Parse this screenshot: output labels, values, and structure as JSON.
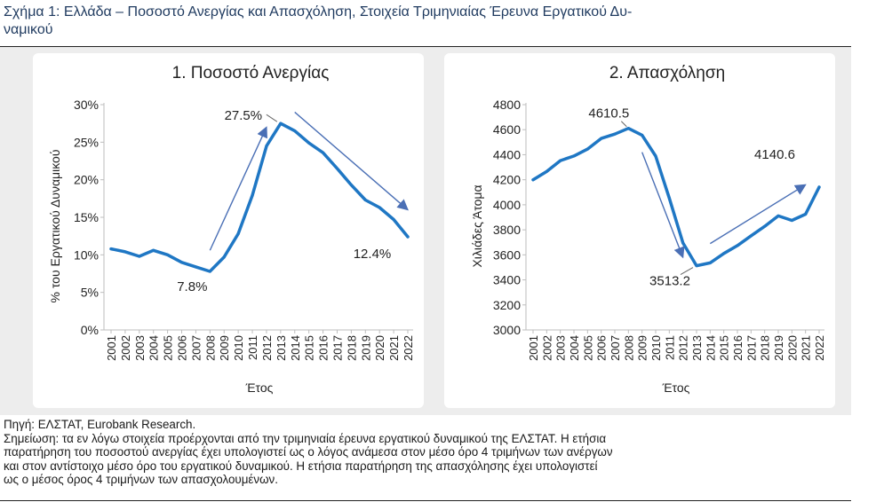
{
  "figure": {
    "title": "Σχήμα 1: Ελλάδα – Ποσοστό Ανεργίας και Απασχόληση, Στοιχεία Τριμηνιαίας Έρευνα Εργατικού Δυ-\nναμικού",
    "source": "Πηγή: ΕΛΣΤΑΤ, Eurobank Research.",
    "note_lines": [
      "Σημείωση: τα εν λόγω στοιχεία προέρχονται από την τριμηνιαία έρευνα εργατικού δυναμικού της ΕΛΣΤΑΤ. Η ετήσια",
      "παρατήρηση του ποσοστού ανεργίας έχει υπολογιστεί ως ο λόγος ανάμεσα στον μέσο όρο 4 τριμήνων των ανέργων",
      "και στον αντίστοιχο μέσο όρο του εργατικού δυναμικού. Η ετήσια παρατήρηση της απασχόλησης έχει υπολογιστεί",
      "ως ο μέσος όρος 4 τριμήνων των απασχολουμένων."
    ],
    "colors": {
      "line": "#1f77c4",
      "arrow": "#4a6fb5",
      "title": "#1f3a5f",
      "panel_bg": "#ededed"
    }
  },
  "chart_data": [
    {
      "type": "line",
      "title": "1. Ποσοστό Ανεργίας",
      "xlabel": "Έτος",
      "ylabel": "% του Εργατικού Δυναμικού",
      "x": [
        "2001",
        "2002",
        "2003",
        "2004",
        "2005",
        "2006",
        "2007",
        "2008",
        "2009",
        "2010",
        "2011",
        "2012",
        "2013",
        "2014",
        "2015",
        "2016",
        "2017",
        "2018",
        "2019",
        "2020",
        "2021",
        "2022"
      ],
      "values": [
        10.8,
        10.4,
        9.8,
        10.6,
        10.0,
        9.0,
        8.4,
        7.8,
        9.7,
        12.8,
        17.9,
        24.5,
        27.5,
        26.5,
        24.9,
        23.6,
        21.5,
        19.3,
        17.3,
        16.3,
        14.7,
        12.4
      ],
      "ylim": [
        0,
        30
      ],
      "yticks": [
        0,
        5,
        10,
        15,
        20,
        25,
        30
      ],
      "ytick_labels": [
        "0%",
        "5%",
        "10%",
        "15%",
        "20%",
        "25%",
        "30%"
      ],
      "annotations": [
        {
          "text": "27.5%",
          "x": "2013",
          "y": 27.5
        },
        {
          "text": "7.8%",
          "x": "2008",
          "y": 7.8
        },
        {
          "text": "12.4%",
          "x": "2022",
          "y": 12.4
        }
      ],
      "arrows": [
        {
          "from": [
            "2008",
            10.6
          ],
          "to": [
            "2012",
            27.0
          ]
        },
        {
          "from": [
            "2014",
            29.0
          ],
          "to": [
            "2022",
            16.0
          ]
        }
      ]
    },
    {
      "type": "line",
      "title": "2. Απασχόληση",
      "xlabel": "Έτος",
      "ylabel": "Χιλιάδες Άτομα",
      "x": [
        "2001",
        "2002",
        "2003",
        "2004",
        "2005",
        "2006",
        "2007",
        "2008",
        "2009",
        "2010",
        "2011",
        "2012",
        "2013",
        "2014",
        "2015",
        "2016",
        "2017",
        "2018",
        "2019",
        "2020",
        "2021",
        "2022"
      ],
      "values": [
        4200,
        4266,
        4353,
        4390,
        4445,
        4530,
        4565,
        4610.5,
        4556,
        4389,
        4054,
        3695,
        3513.2,
        3536,
        3611,
        3674,
        3752,
        3828,
        3911,
        3875,
        3925,
        4140.6
      ],
      "ylim": [
        3000,
        4800
      ],
      "yticks": [
        3000,
        3200,
        3400,
        3600,
        3800,
        4000,
        4200,
        4400,
        4600,
        4800
      ],
      "ytick_labels": [
        "3000",
        "3200",
        "3400",
        "3600",
        "3800",
        "4000",
        "4200",
        "4400",
        "4600",
        "4800"
      ],
      "annotations": [
        {
          "text": "4610.5",
          "x": "2008",
          "y": 4610.5
        },
        {
          "text": "3513.2",
          "x": "2013",
          "y": 3513.2
        },
        {
          "text": "4140.6",
          "x": "2022",
          "y": 4140.6
        }
      ],
      "arrows": [
        {
          "from": [
            "2009",
            4420
          ],
          "to": [
            "2012",
            3580
          ]
        },
        {
          "from": [
            "2014",
            3690
          ],
          "to": [
            "2021",
            4160
          ]
        }
      ]
    }
  ]
}
